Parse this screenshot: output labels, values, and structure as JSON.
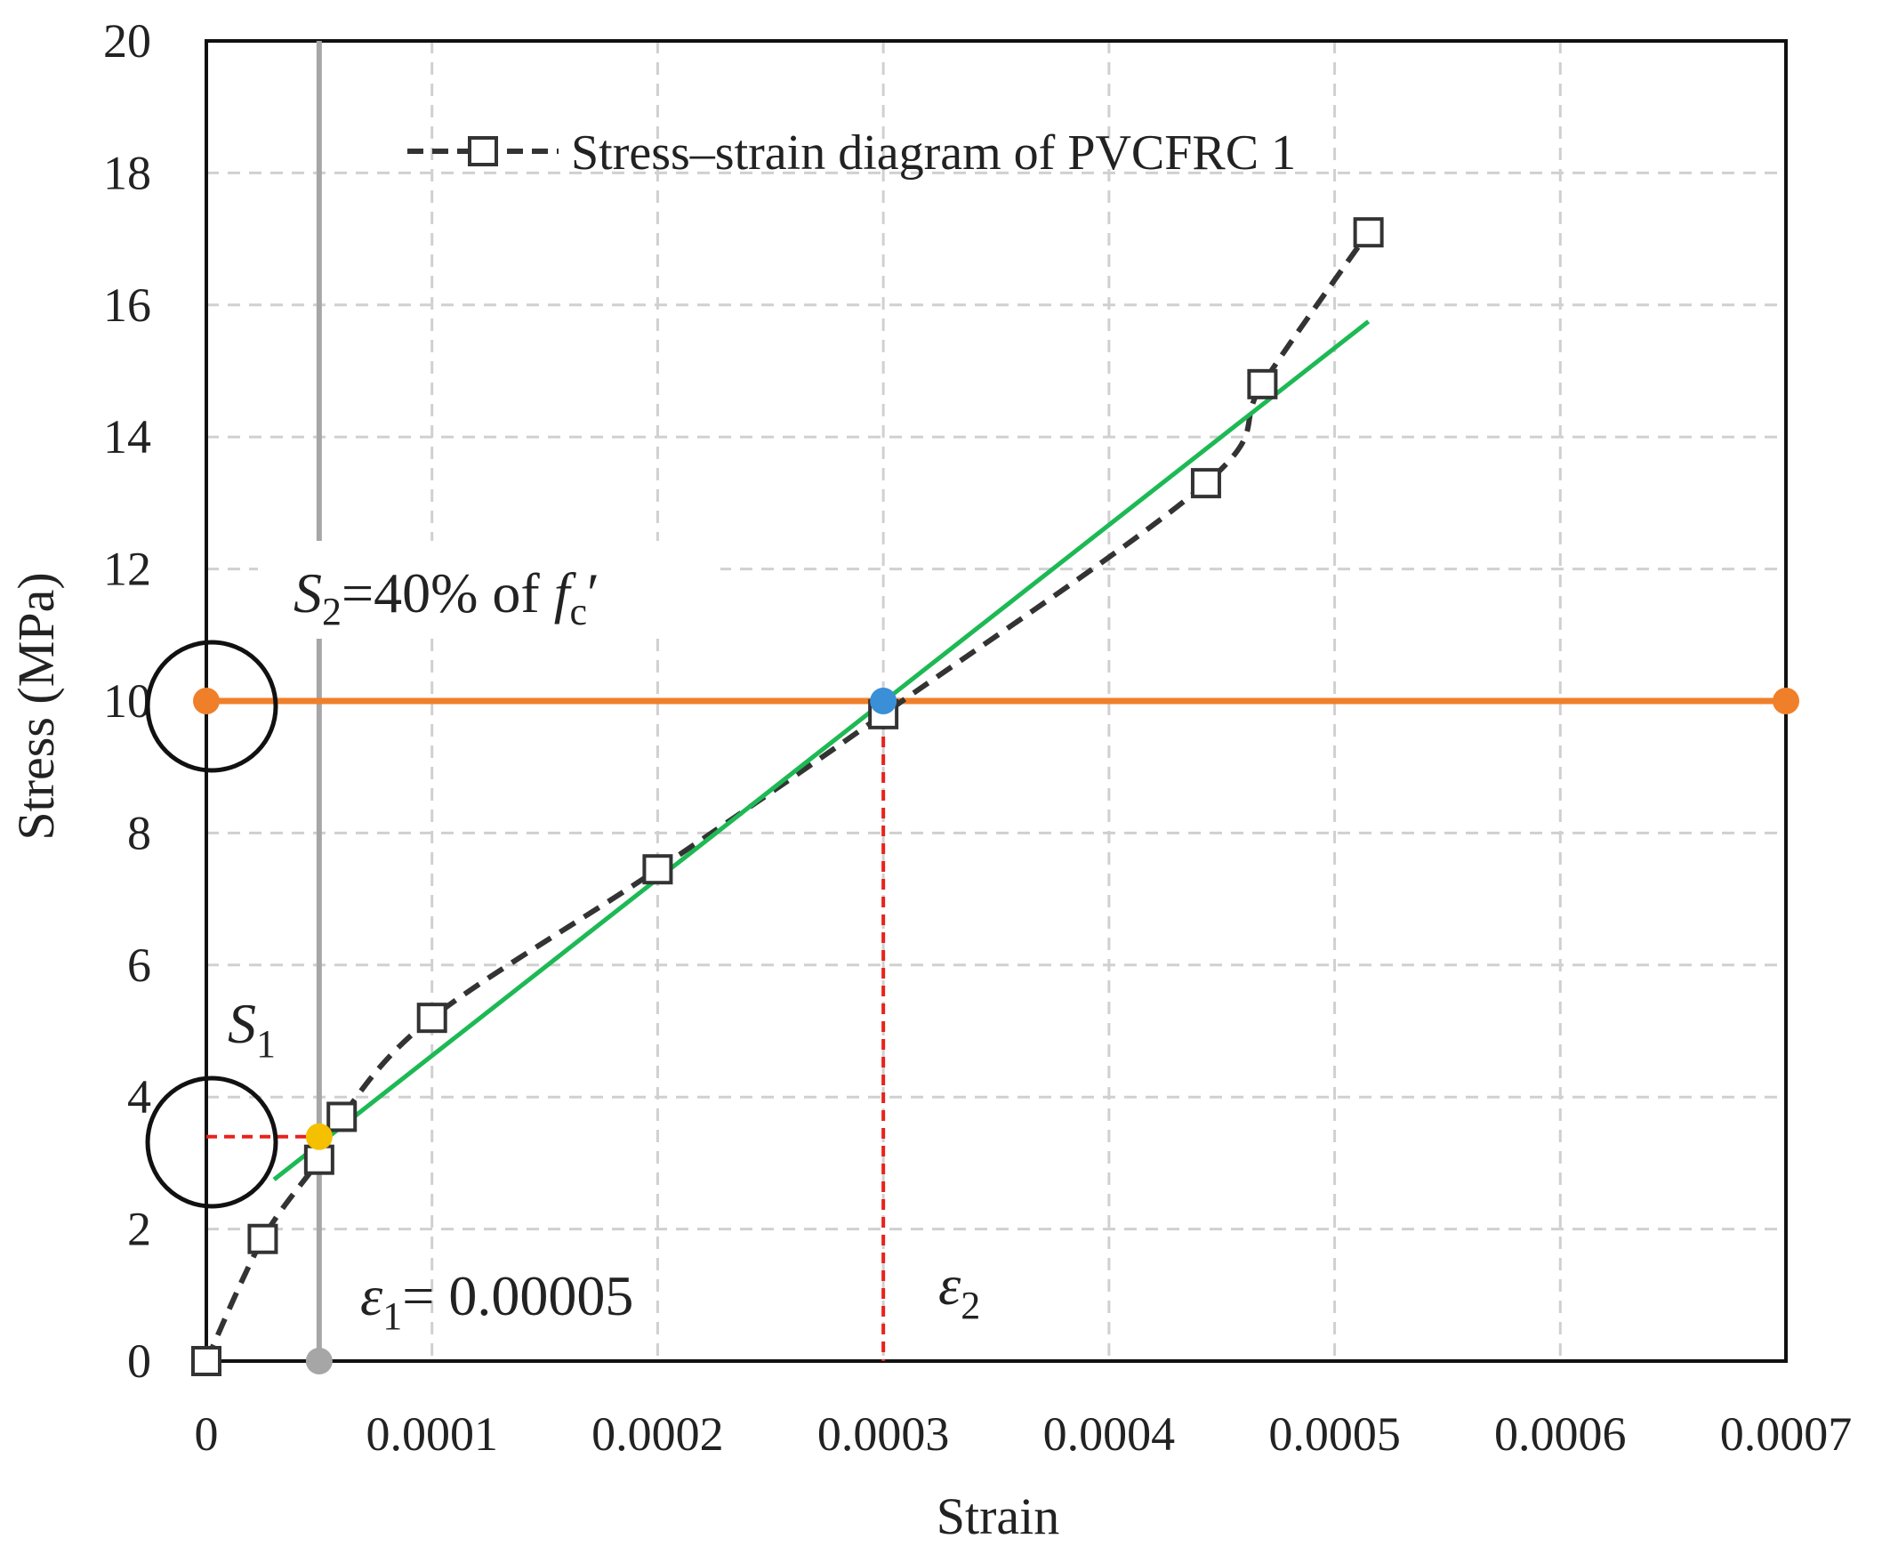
{
  "chart_data": {
    "type": "line",
    "xlabel": "Strain",
    "ylabel": "Stress (MPa)",
    "xlim": [
      0,
      0.0007
    ],
    "ylim": [
      0,
      20
    ],
    "x_ticks": [
      0,
      0.0001,
      0.0002,
      0.0003,
      0.0004,
      0.0005,
      0.0006,
      0.0007
    ],
    "x_tick_labels": [
      "0",
      "0.0001",
      "0.0002",
      "0.0003",
      "0.0004",
      "0.0005",
      "0.0006",
      "0.0007"
    ],
    "y_ticks": [
      0,
      2,
      4,
      6,
      8,
      10,
      12,
      14,
      16,
      18,
      20
    ],
    "y_tick_labels": [
      "0",
      "2",
      "4",
      "6",
      "8",
      "10",
      "12",
      "14",
      "16",
      "18",
      "20"
    ],
    "grid": true,
    "legend_position": "top",
    "series": [
      {
        "name": "Stress–strain diagram of PVCFRC 1",
        "style": "dashed-square-markers",
        "color": "#333333",
        "x": [
          0,
          2.5e-05,
          5e-05,
          6e-05,
          0.0001,
          0.0002,
          0.0003,
          0.000443,
          0.000468,
          0.000515
        ],
        "y": [
          0,
          1.85,
          3.05,
          3.7,
          5.2,
          7.45,
          9.8,
          13.3,
          14.8,
          17.1
        ]
      },
      {
        "name": "chord line",
        "style": "solid",
        "color": "#1db954",
        "x": [
          3e-05,
          0.000515
        ],
        "y": [
          2.75,
          15.75
        ]
      },
      {
        "name": "40% fc' level",
        "style": "solid-with-dots",
        "color": "#f07f2a",
        "x": [
          0,
          0.0007
        ],
        "y": [
          10,
          10
        ]
      }
    ],
    "vertical_marker": {
      "x": 5e-05,
      "y_from": 0,
      "y_to": 20,
      "color": "#a6a6a6"
    },
    "points": [
      {
        "name": "S1 point",
        "x": 5e-05,
        "y": 3.4,
        "color": "#f5c000"
      },
      {
        "name": "S2 point",
        "x": 0.0003,
        "y": 10,
        "color": "#3a8fd6"
      }
    ],
    "guides": [
      {
        "name": "S1 horizontal guide",
        "from": [
          0,
          3.4
        ],
        "to": [
          5e-05,
          3.4
        ],
        "color": "#e8231a"
      },
      {
        "name": "epsilon2 vertical guide",
        "from": [
          0.0003,
          10
        ],
        "to": [
          0.0003,
          0
        ],
        "color": "#e8231a"
      }
    ],
    "annotations": {
      "s2": {
        "main": "S",
        "sub": "2",
        "text": "=40% of ",
        "f": "f",
        "f_sub": "c",
        "prime": "′"
      },
      "s1": {
        "main": "S",
        "sub": "1"
      },
      "eps1": {
        "main": "ε",
        "sub": "1",
        "text": "= 0.00005"
      },
      "eps2": {
        "main": "ε",
        "sub": "2"
      }
    }
  }
}
